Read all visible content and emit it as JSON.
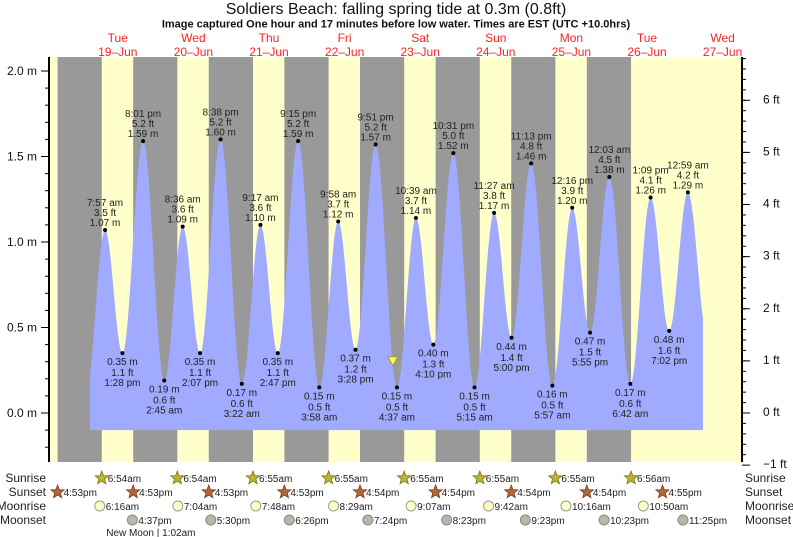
{
  "chart_data": {
    "type": "area",
    "title": "Soldiers Beach: falling  spring tide at 0.3m (0.8ft)",
    "subtitle": "Image captured One hour and 17 minutes before low water. Times are EST (UTC +10.0hrs)",
    "y_left": {
      "unit": "m",
      "ticks": [
        "2.0 m",
        "1.5 m",
        "1.0 m",
        "0.5 m",
        "0.0 m"
      ],
      "values": [
        2.0,
        1.5,
        1.0,
        0.5,
        0.0
      ]
    },
    "y_right": {
      "unit": "ft",
      "ticks": [
        "6 ft",
        "5 ft",
        "4 ft",
        "3 ft",
        "2 ft",
        "1 ft",
        "0 ft",
        "−1 ft"
      ],
      "values": [
        6,
        5,
        4,
        3,
        2,
        1,
        0,
        -1
      ]
    },
    "days": [
      {
        "dow": "Tue",
        "date": "19–Jun"
      },
      {
        "dow": "Wed",
        "date": "20–Jun"
      },
      {
        "dow": "Thu",
        "date": "21–Jun"
      },
      {
        "dow": "Fri",
        "date": "22–Jun"
      },
      {
        "dow": "Sat",
        "date": "23–Jun"
      },
      {
        "dow": "Sun",
        "date": "24–Jun"
      },
      {
        "dow": "Mon",
        "date": "25–Jun"
      },
      {
        "dow": "Tue",
        "date": "26–Jun"
      },
      {
        "dow": "Wed",
        "date": "27–Jun"
      }
    ],
    "current": {
      "level_m": 0.3,
      "level_ft": 0.8
    },
    "extremes": [
      {
        "day": 19,
        "time": "7:57 am",
        "ft": "3.5 ft",
        "m": "1.07 m",
        "v": 1.07,
        "type": "high"
      },
      {
        "day": 19,
        "time": "1:28 pm",
        "ft": "1.1 ft",
        "m": "0.35 m",
        "v": 0.35,
        "type": "low"
      },
      {
        "day": 19,
        "time": "8:01 pm",
        "ft": "5.2 ft",
        "m": "1.59 m",
        "v": 1.59,
        "type": "high"
      },
      {
        "day": 20,
        "time": "2:45 am",
        "ft": "0.6 ft",
        "m": "0.19 m",
        "v": 0.19,
        "type": "low"
      },
      {
        "day": 20,
        "time": "8:36 am",
        "ft": "3.6 ft",
        "m": "1.09 m",
        "v": 1.09,
        "type": "high"
      },
      {
        "day": 20,
        "time": "2:07 pm",
        "ft": "1.1 ft",
        "m": "0.35 m",
        "v": 0.35,
        "type": "low"
      },
      {
        "day": 20,
        "time": "8:38 pm",
        "ft": "5.2 ft",
        "m": "1.60 m",
        "v": 1.6,
        "type": "high"
      },
      {
        "day": 21,
        "time": "3:22 am",
        "ft": "0.6 ft",
        "m": "0.17 m",
        "v": 0.17,
        "type": "low"
      },
      {
        "day": 21,
        "time": "9:17 am",
        "ft": "3.6 ft",
        "m": "1.10 m",
        "v": 1.1,
        "type": "high"
      },
      {
        "day": 21,
        "time": "2:47 pm",
        "ft": "1.1 ft",
        "m": "0.35 m",
        "v": 0.35,
        "type": "low"
      },
      {
        "day": 21,
        "time": "9:15 pm",
        "ft": "5.2 ft",
        "m": "1.59 m",
        "v": 1.59,
        "type": "high"
      },
      {
        "day": 22,
        "time": "3:58 am",
        "ft": "0.5 ft",
        "m": "0.15 m",
        "v": 0.15,
        "type": "low"
      },
      {
        "day": 22,
        "time": "9:58 am",
        "ft": "3.7 ft",
        "m": "1.12 m",
        "v": 1.12,
        "type": "high"
      },
      {
        "day": 22,
        "time": "3:28 pm",
        "ft": "1.2 ft",
        "m": "0.37 m",
        "v": 0.37,
        "type": "low"
      },
      {
        "day": 22,
        "time": "9:51 pm",
        "ft": "5.2 ft",
        "m": "1.57 m",
        "v": 1.57,
        "type": "high"
      },
      {
        "day": 23,
        "time": "4:37 am",
        "ft": "0.5 ft",
        "m": "0.15 m",
        "v": 0.15,
        "type": "low"
      },
      {
        "day": 23,
        "time": "10:39 am",
        "ft": "3.7 ft",
        "m": "1.14 m",
        "v": 1.14,
        "type": "high"
      },
      {
        "day": 23,
        "time": "4:10 pm",
        "ft": "1.3 ft",
        "m": "0.40 m",
        "v": 0.4,
        "type": "low"
      },
      {
        "day": 23,
        "time": "10:31 pm",
        "ft": "5.0 ft",
        "m": "1.52 m",
        "v": 1.52,
        "type": "high"
      },
      {
        "day": 24,
        "time": "5:15 am",
        "ft": "0.5 ft",
        "m": "0.15 m",
        "v": 0.15,
        "type": "low"
      },
      {
        "day": 24,
        "time": "11:27 am",
        "ft": "3.8 ft",
        "m": "1.17 m",
        "v": 1.17,
        "type": "high"
      },
      {
        "day": 24,
        "time": "5:00 pm",
        "ft": "1.4 ft",
        "m": "0.44 m",
        "v": 0.44,
        "type": "low"
      },
      {
        "day": 24,
        "time": "11:13 pm",
        "ft": "4.8 ft",
        "m": "1.46 m",
        "v": 1.46,
        "type": "high"
      },
      {
        "day": 25,
        "time": "5:57 am",
        "ft": "0.5 ft",
        "m": "0.16 m",
        "v": 0.16,
        "type": "low"
      },
      {
        "day": 25,
        "time": "12:16 pm",
        "ft": "3.9 ft",
        "m": "1.20 m",
        "v": 1.2,
        "type": "high"
      },
      {
        "day": 25,
        "time": "5:55 pm",
        "ft": "1.5 ft",
        "m": "0.47 m",
        "v": 0.47,
        "type": "low"
      },
      {
        "day": 26,
        "time": "12:03 am",
        "ft": "4.5 ft",
        "m": "1.38 m",
        "v": 1.38,
        "type": "high"
      },
      {
        "day": 26,
        "time": "6:42 am",
        "ft": "0.6 ft",
        "m": "0.17 m",
        "v": 0.17,
        "type": "low"
      },
      {
        "day": 26,
        "time": "1:09 pm",
        "ft": "4.1 ft",
        "m": "1.26 m",
        "v": 1.26,
        "type": "high"
      },
      {
        "day": 26,
        "time": "7:02 pm",
        "ft": "1.6 ft",
        "m": "0.48 m",
        "v": 0.48,
        "type": "low"
      },
      {
        "day": 27,
        "time": "12:59 am",
        "ft": "4.2 ft",
        "m": "1.29 m",
        "v": 1.29,
        "type": "high"
      }
    ],
    "colors": {
      "night": "#999999",
      "day": "#ffffcc",
      "water": "#a0aaff",
      "day_label": "#ee2222",
      "marker": "#ffff33"
    }
  },
  "rows": {
    "sunrise": {
      "label": "Sunrise",
      "events": [
        {
          "day": 19,
          "time": "6:54am"
        },
        {
          "day": 20,
          "time": "6:54am"
        },
        {
          "day": 21,
          "time": "6:55am"
        },
        {
          "day": 22,
          "time": "6:55am"
        },
        {
          "day": 23,
          "time": "6:55am"
        },
        {
          "day": 24,
          "time": "6:55am"
        },
        {
          "day": 25,
          "time": "6:55am"
        },
        {
          "day": 26,
          "time": "6:56am"
        }
      ]
    },
    "sunset": {
      "label": "Sunset",
      "events": [
        {
          "day": 18,
          "time": "4:53pm"
        },
        {
          "day": 19,
          "time": "4:53pm"
        },
        {
          "day": 20,
          "time": "4:53pm"
        },
        {
          "day": 21,
          "time": "4:53pm"
        },
        {
          "day": 22,
          "time": "4:54pm"
        },
        {
          "day": 23,
          "time": "4:54pm"
        },
        {
          "day": 24,
          "time": "4:54pm"
        },
        {
          "day": 25,
          "time": "4:54pm"
        },
        {
          "day": 26,
          "time": "4:55pm"
        }
      ]
    },
    "moonrise": {
      "label": "Moonrise",
      "events": [
        {
          "day": 19,
          "time": "6:16am"
        },
        {
          "day": 20,
          "time": "7:04am"
        },
        {
          "day": 21,
          "time": "7:48am"
        },
        {
          "day": 22,
          "time": "8:29am"
        },
        {
          "day": 23,
          "time": "9:07am"
        },
        {
          "day": 24,
          "time": "9:42am"
        },
        {
          "day": 25,
          "time": "10:16am"
        },
        {
          "day": 26,
          "time": "10:50am"
        }
      ]
    },
    "moonset": {
      "label": "Moonset",
      "events": [
        {
          "day": 19,
          "time": "4:37pm"
        },
        {
          "day": 20,
          "time": "5:30pm"
        },
        {
          "day": 21,
          "time": "6:26pm"
        },
        {
          "day": 22,
          "time": "7:24pm"
        },
        {
          "day": 23,
          "time": "8:23pm"
        },
        {
          "day": 24,
          "time": "9:23pm"
        },
        {
          "day": 25,
          "time": "10:23pm"
        },
        {
          "day": 26,
          "time": "11:25pm"
        }
      ]
    },
    "moon_phase": {
      "label": "New Moon | 1:02am",
      "day": 20,
      "time": "1:02am"
    }
  }
}
